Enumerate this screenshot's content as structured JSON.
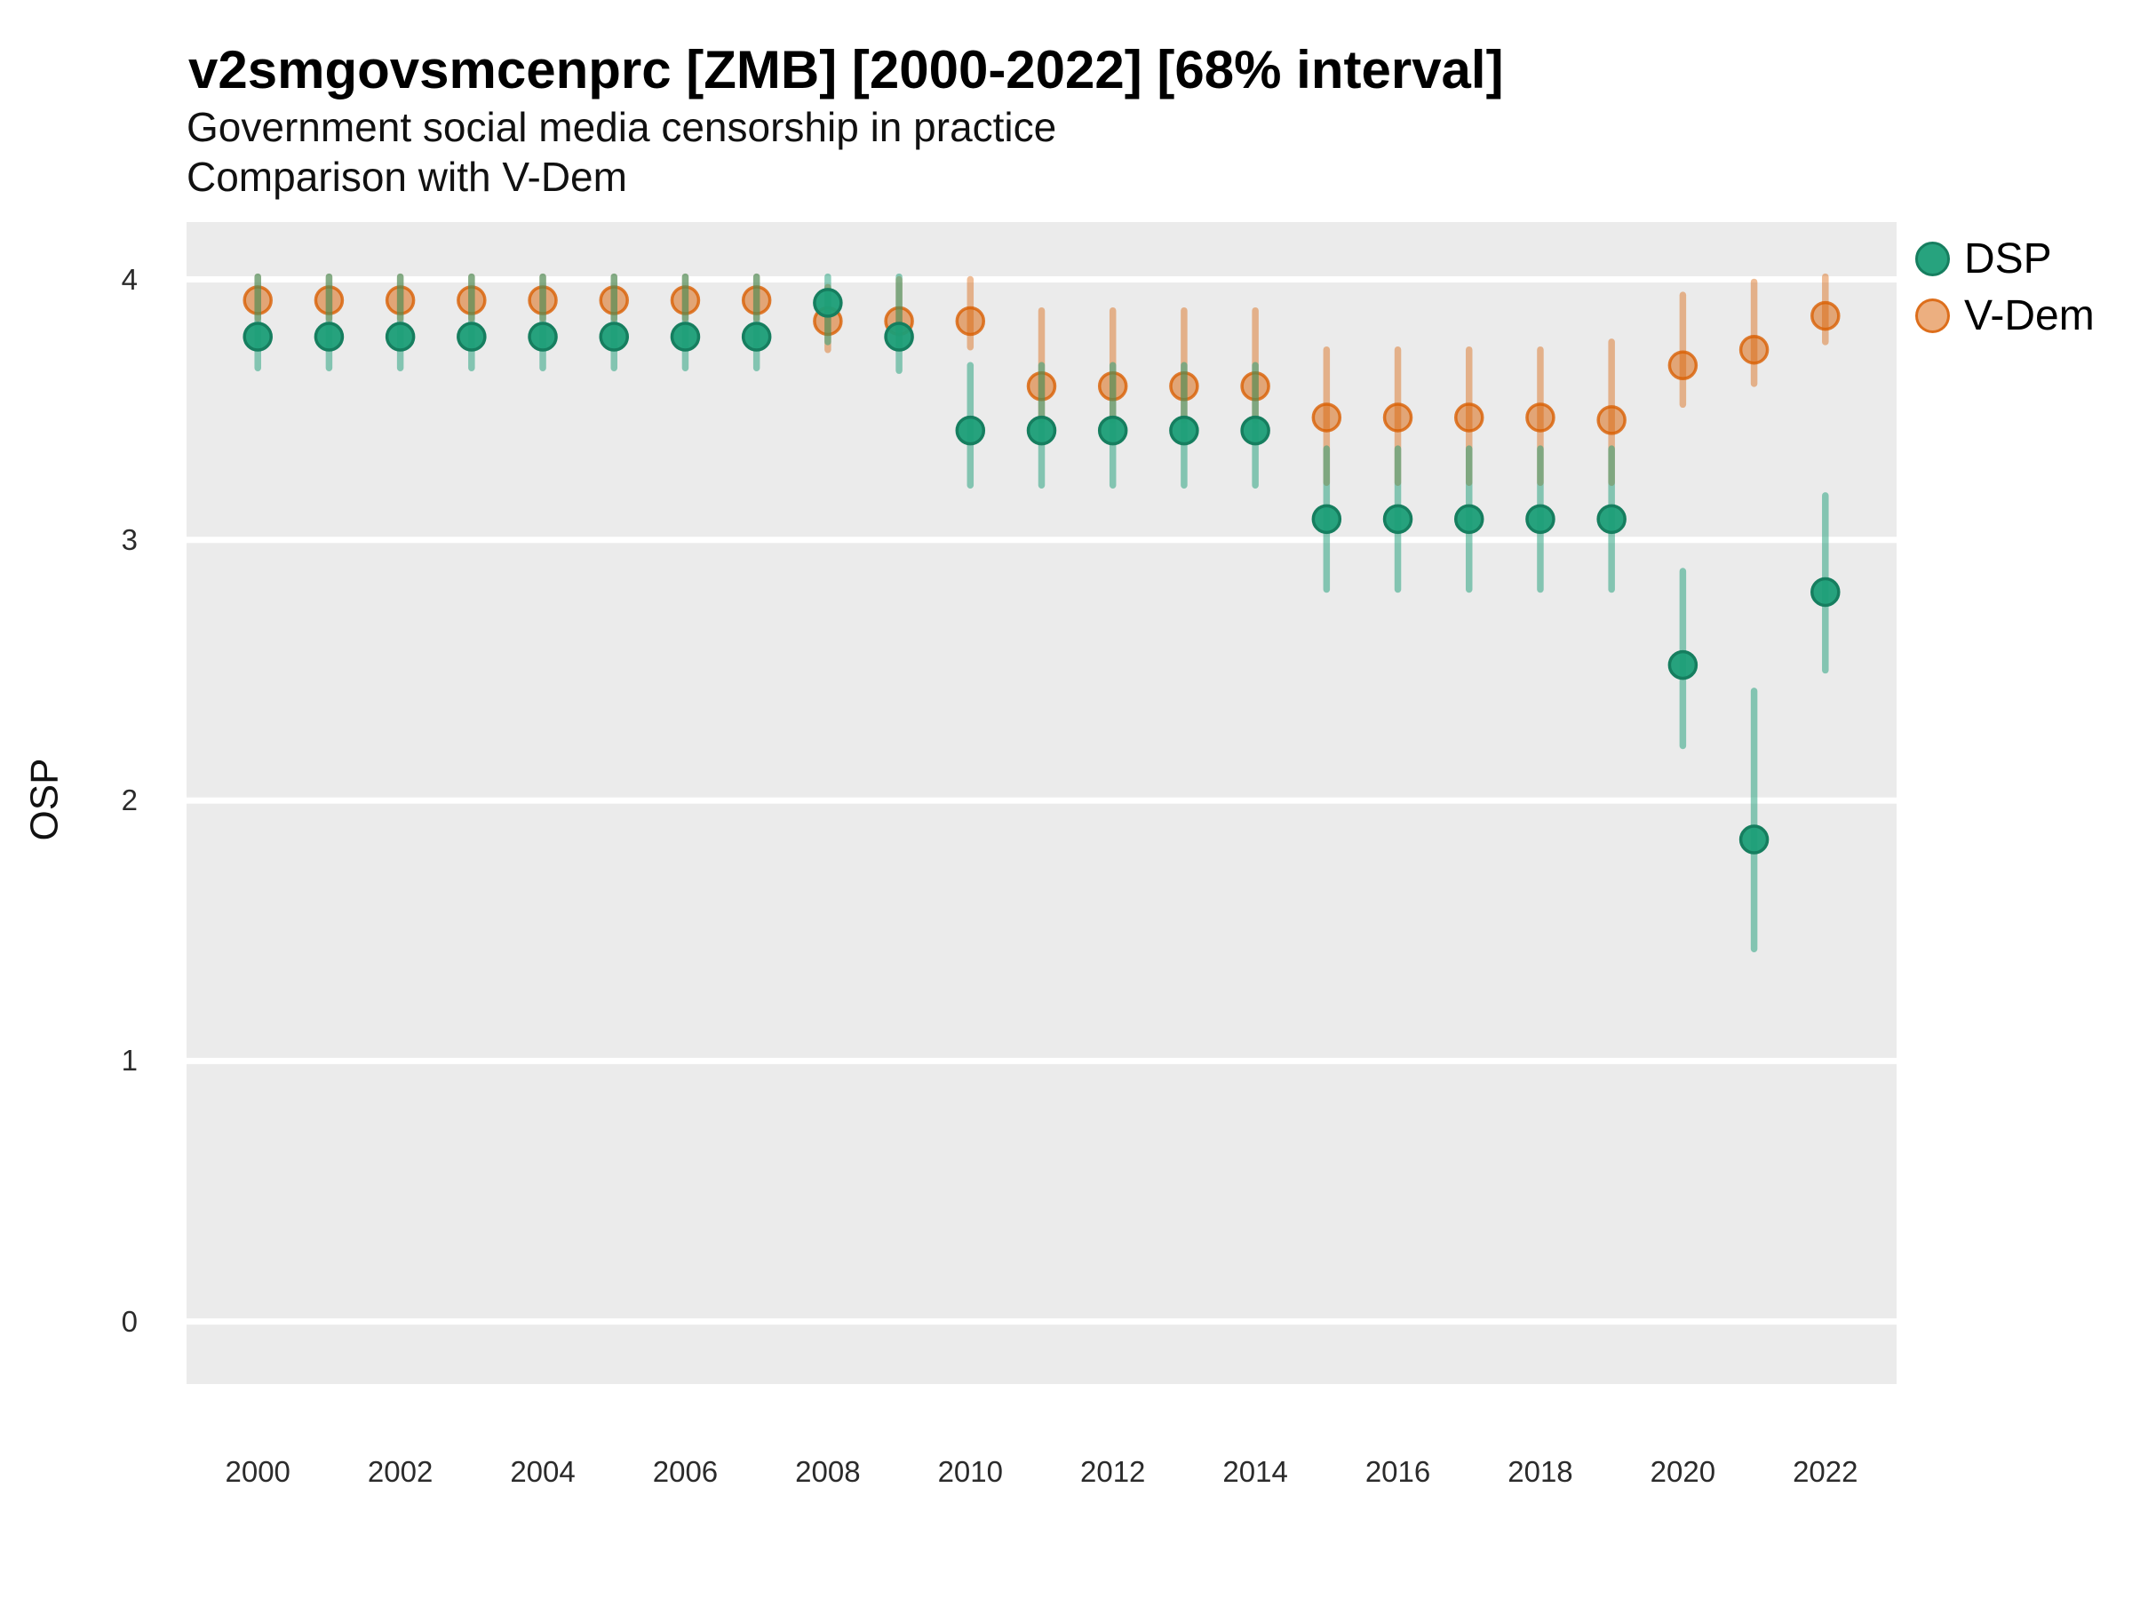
{
  "header": {
    "title": "v2smgovsmcenprc [ZMB] [2000-2022] [68% interval]",
    "subtitle": "Government social media censorship in practice",
    "subtitle2": "Comparison with V-Dem"
  },
  "colors": {
    "panel_background": "#EBEBEB",
    "gridline": "#FFFFFF",
    "dsp_green": "#1b9e77",
    "vdem_orange": "#d95f02"
  },
  "chart_data": {
    "type": "scatter",
    "title": "v2smgovsmcenprc [ZMB] [2000-2022] [68% interval]",
    "subtitle": "Government social media censorship in practice",
    "subtitle2": "Comparison with V-Dem",
    "ylabel": "OSP",
    "xlabel": "",
    "interval_note": "68% interval",
    "grid": "horizontal-only",
    "legend_position": "right",
    "x": [
      2000,
      2001,
      2002,
      2003,
      2004,
      2005,
      2006,
      2007,
      2008,
      2009,
      2010,
      2011,
      2012,
      2013,
      2014,
      2015,
      2016,
      2017,
      2018,
      2019,
      2020,
      2021,
      2022
    ],
    "x_ticks": [
      2000,
      2002,
      2004,
      2006,
      2008,
      2010,
      2012,
      2014,
      2016,
      2018,
      2020,
      2022
    ],
    "y_ticks": [
      4,
      3,
      2,
      1,
      0
    ],
    "xlim": [
      1999,
      2023
    ],
    "ylim": [
      -0.24,
      4.22
    ],
    "series": [
      {
        "name": "V-Dem",
        "color": "#d95f02",
        "values": [
          3.92,
          3.92,
          3.92,
          3.92,
          3.92,
          3.92,
          3.92,
          3.92,
          3.84,
          3.84,
          3.84,
          3.59,
          3.59,
          3.59,
          3.59,
          3.47,
          3.47,
          3.47,
          3.47,
          3.46,
          3.67,
          3.73,
          3.86
        ],
        "lower": [
          3.85,
          3.85,
          3.85,
          3.85,
          3.85,
          3.85,
          3.85,
          3.85,
          3.73,
          3.74,
          3.74,
          3.46,
          3.46,
          3.46,
          3.46,
          3.22,
          3.22,
          3.22,
          3.22,
          3.22,
          3.52,
          3.6,
          3.76
        ],
        "upper": [
          4.01,
          4.01,
          4.01,
          4.01,
          4.01,
          4.01,
          4.01,
          4.01,
          3.97,
          4.0,
          4.0,
          3.88,
          3.88,
          3.88,
          3.88,
          3.73,
          3.73,
          3.73,
          3.73,
          3.76,
          3.94,
          3.99,
          4.01
        ]
      },
      {
        "name": "DSP",
        "color": "#1b9e77",
        "values": [
          3.78,
          3.78,
          3.78,
          3.78,
          3.78,
          3.78,
          3.78,
          3.78,
          3.91,
          3.78,
          3.42,
          3.42,
          3.42,
          3.42,
          3.42,
          3.08,
          3.08,
          3.08,
          3.08,
          3.08,
          2.52,
          1.85,
          2.8
        ],
        "lower": [
          3.66,
          3.66,
          3.66,
          3.66,
          3.66,
          3.66,
          3.66,
          3.66,
          3.76,
          3.65,
          3.21,
          3.21,
          3.21,
          3.21,
          3.21,
          2.81,
          2.81,
          2.81,
          2.81,
          2.81,
          2.21,
          1.43,
          2.5
        ],
        "upper": [
          4.01,
          4.01,
          4.01,
          4.01,
          4.01,
          4.01,
          4.01,
          4.01,
          4.01,
          4.01,
          3.67,
          3.67,
          3.67,
          3.67,
          3.67,
          3.35,
          3.35,
          3.35,
          3.35,
          3.35,
          2.88,
          2.42,
          3.17
        ]
      }
    ],
    "legend": [
      "DSP",
      "V-Dem"
    ]
  }
}
